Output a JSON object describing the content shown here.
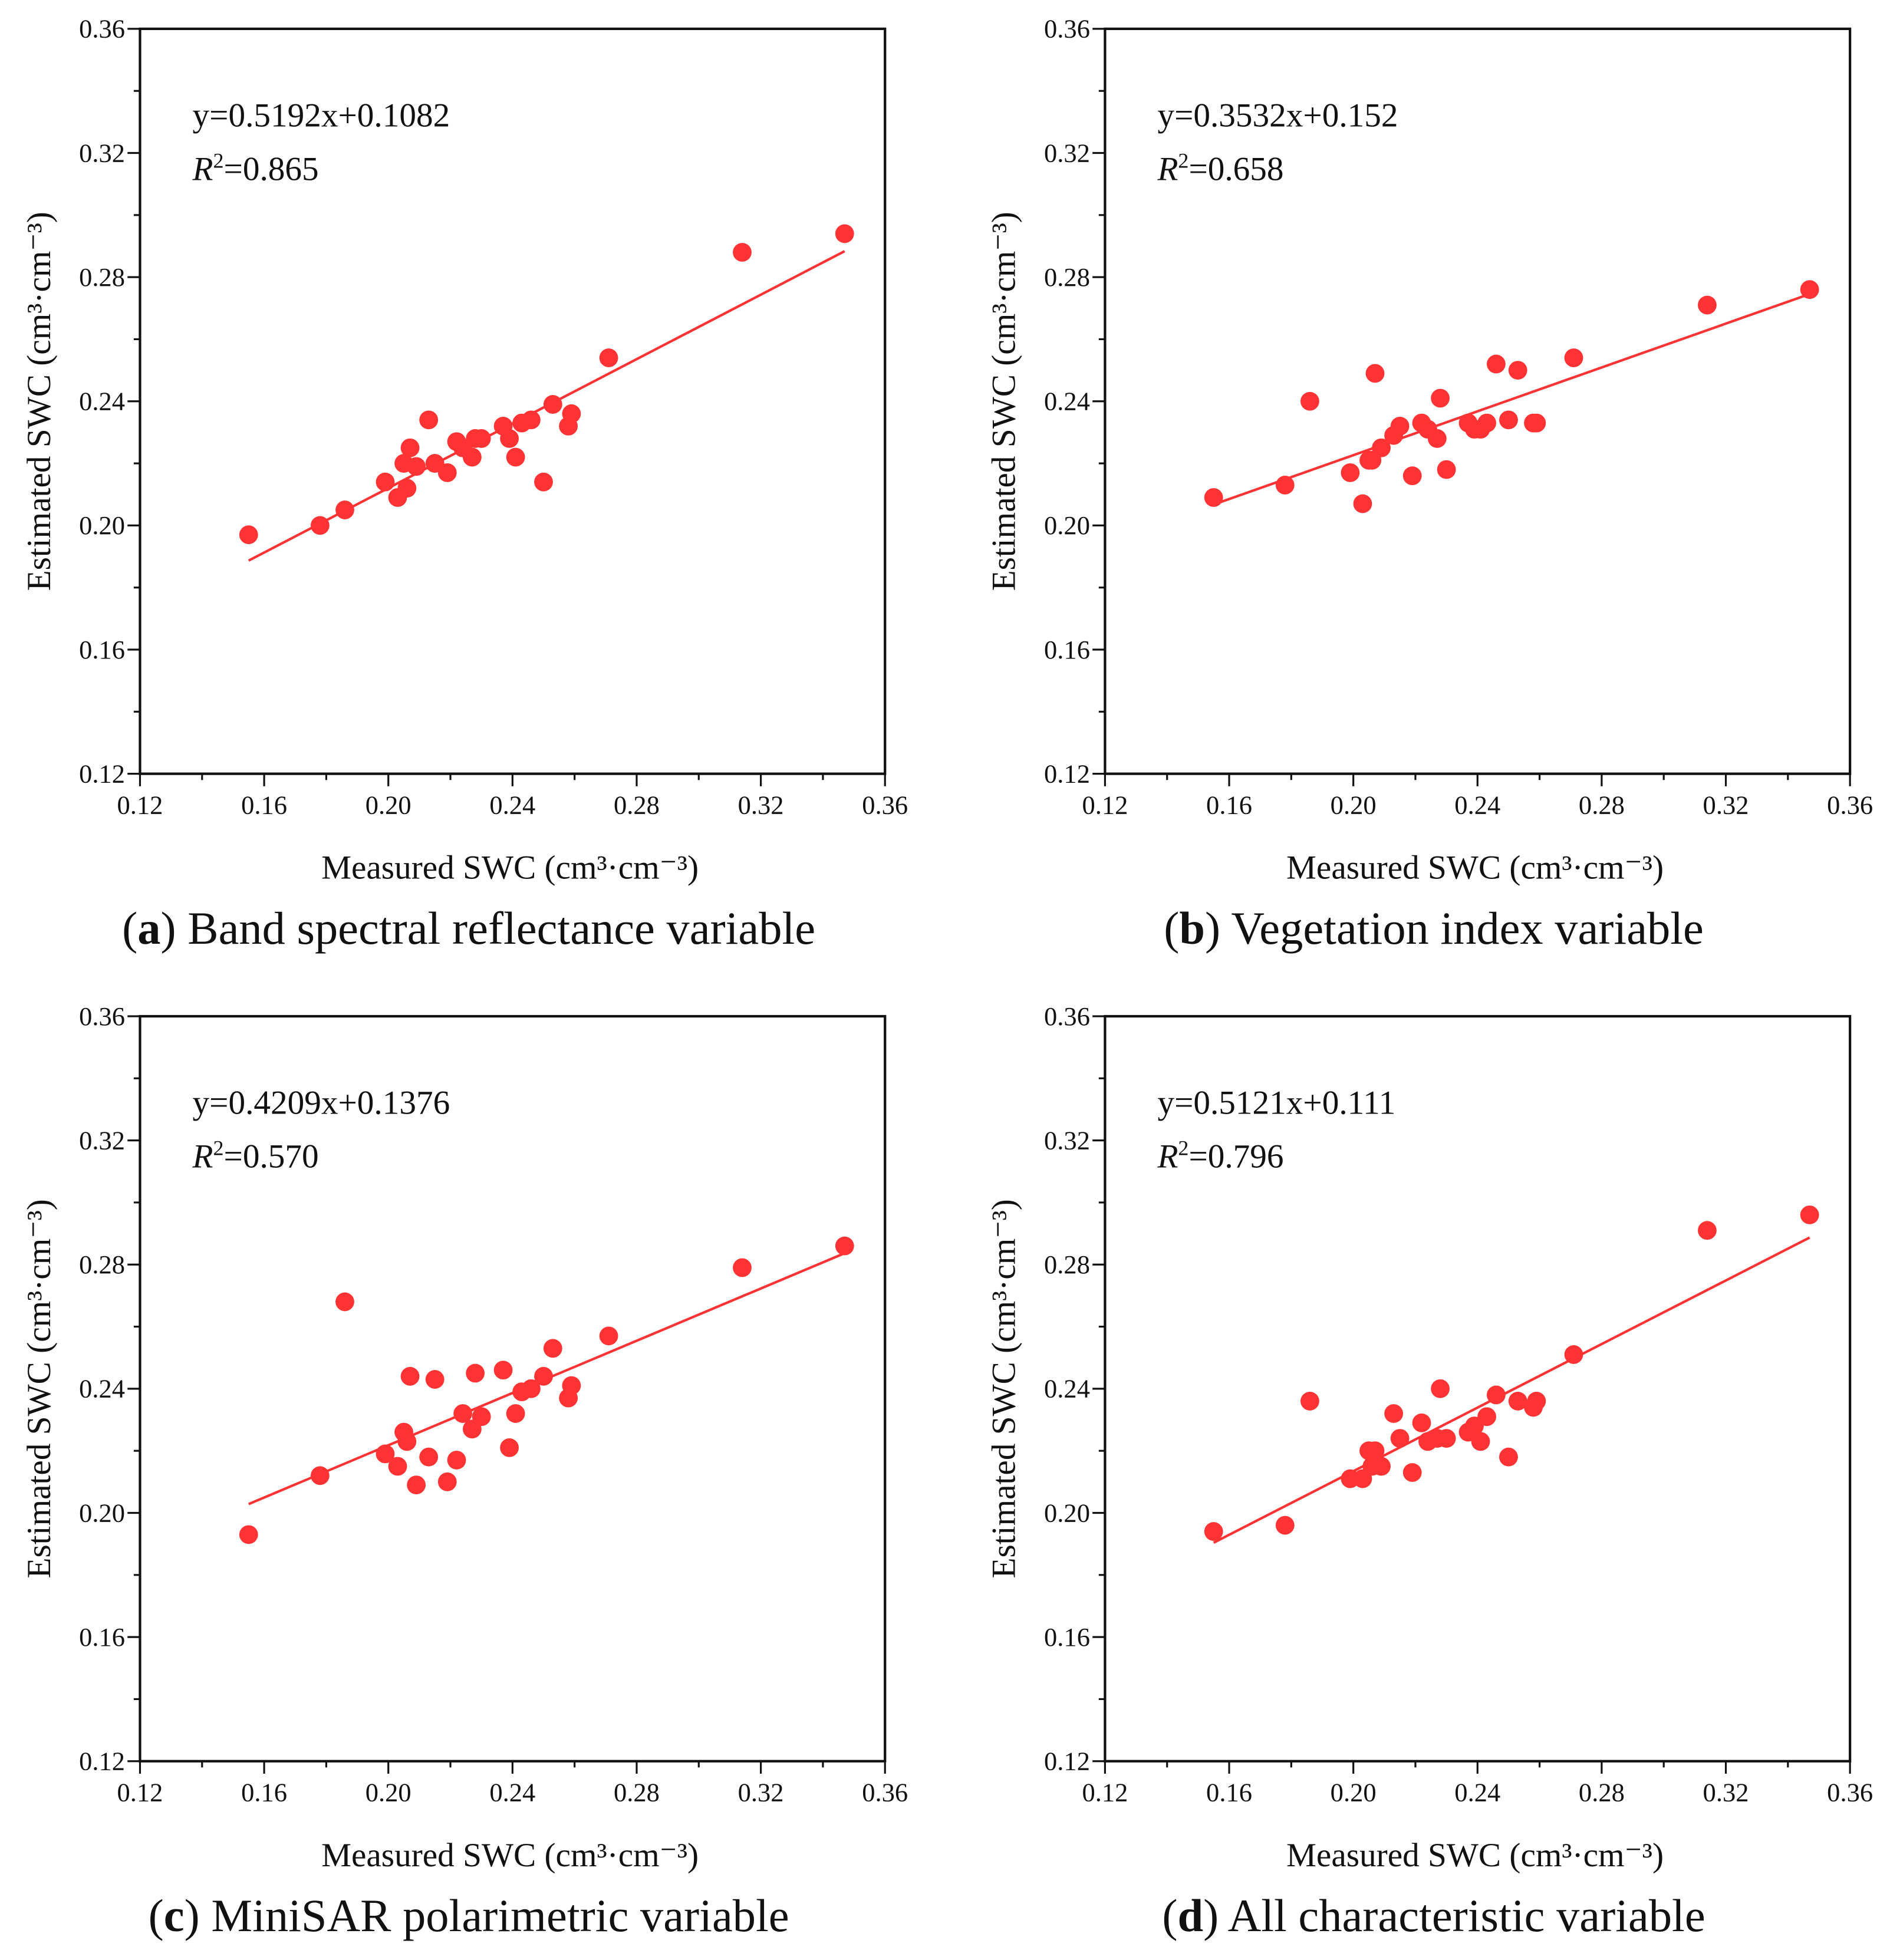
{
  "chart_data": [
    {
      "type": "scatter",
      "panel_letter": "a",
      "caption": " Band spectral reflectance variable",
      "equation": "y=0.5192x+0.1082",
      "r2_label": "R",
      "r2_value": "=0.865",
      "fit": {
        "slope": 0.5192,
        "intercept": 0.1082
      },
      "xlabel": "Measured SWC (cm³·cm⁻³)",
      "ylabel": "Estimated SWC (cm³·cm⁻³)",
      "xlim": [
        0.12,
        0.36
      ],
      "ylim": [
        0.12,
        0.36
      ],
      "ticks": [
        "0.12",
        "0.16",
        "0.20",
        "0.24",
        "0.28",
        "0.32",
        "0.36"
      ],
      "x": [
        0.155,
        0.178,
        0.186,
        0.199,
        0.203,
        0.205,
        0.206,
        0.207,
        0.209,
        0.213,
        0.215,
        0.219,
        0.222,
        0.224,
        0.227,
        0.228,
        0.23,
        0.237,
        0.239,
        0.241,
        0.243,
        0.246,
        0.25,
        0.253,
        0.258,
        0.259,
        0.271,
        0.314,
        0.347
      ],
      "y": [
        0.197,
        0.2,
        0.205,
        0.214,
        0.209,
        0.22,
        0.212,
        0.225,
        0.219,
        0.234,
        0.22,
        0.217,
        0.227,
        0.225,
        0.222,
        0.228,
        0.228,
        0.232,
        0.228,
        0.222,
        0.233,
        0.234,
        0.214,
        0.239,
        0.232,
        0.236,
        0.254,
        0.288,
        0.294
      ]
    },
    {
      "type": "scatter",
      "panel_letter": "b",
      "caption": " Vegetation index variable",
      "equation": "y=0.3532x+0.152",
      "r2_label": "R",
      "r2_value": "=0.658",
      "fit": {
        "slope": 0.3532,
        "intercept": 0.152
      },
      "xlabel": "Measured SWC (cm³·cm⁻³)",
      "ylabel": "Estimated SWC (cm³·cm⁻³)",
      "xlim": [
        0.12,
        0.36
      ],
      "ylim": [
        0.12,
        0.36
      ],
      "ticks": [
        "0.12",
        "0.16",
        "0.20",
        "0.24",
        "0.28",
        "0.32",
        "0.36"
      ],
      "x": [
        0.155,
        0.178,
        0.186,
        0.199,
        0.203,
        0.205,
        0.206,
        0.207,
        0.209,
        0.213,
        0.215,
        0.219,
        0.222,
        0.224,
        0.227,
        0.228,
        0.23,
        0.237,
        0.239,
        0.241,
        0.243,
        0.246,
        0.25,
        0.253,
        0.258,
        0.259,
        0.271,
        0.314,
        0.347
      ],
      "y": [
        0.209,
        0.213,
        0.24,
        0.217,
        0.207,
        0.221,
        0.221,
        0.249,
        0.225,
        0.229,
        0.232,
        0.216,
        0.233,
        0.231,
        0.228,
        0.241,
        0.218,
        0.233,
        0.231,
        0.231,
        0.233,
        0.252,
        0.234,
        0.25,
        0.233,
        0.233,
        0.254,
        0.271,
        0.276
      ]
    },
    {
      "type": "scatter",
      "panel_letter": "c",
      "caption": " MiniSAR polarimetric variable",
      "equation": "y=0.4209x+0.1376",
      "r2_label": "R",
      "r2_value": "=0.570",
      "fit": {
        "slope": 0.4209,
        "intercept": 0.1376
      },
      "xlabel": "Measured SWC (cm³·cm⁻³)",
      "ylabel": "Estimated SWC (cm³·cm⁻³)",
      "xlim": [
        0.12,
        0.36
      ],
      "ylim": [
        0.12,
        0.36
      ],
      "ticks": [
        "0.12",
        "0.16",
        "0.20",
        "0.24",
        "0.28",
        "0.32",
        "0.36"
      ],
      "x": [
        0.155,
        0.178,
        0.186,
        0.199,
        0.203,
        0.205,
        0.206,
        0.207,
        0.209,
        0.213,
        0.215,
        0.219,
        0.222,
        0.224,
        0.227,
        0.228,
        0.23,
        0.237,
        0.239,
        0.241,
        0.243,
        0.246,
        0.25,
        0.253,
        0.258,
        0.259,
        0.271,
        0.314,
        0.347
      ],
      "y": [
        0.193,
        0.212,
        0.268,
        0.219,
        0.215,
        0.226,
        0.223,
        0.244,
        0.209,
        0.218,
        0.243,
        0.21,
        0.217,
        0.232,
        0.227,
        0.245,
        0.231,
        0.246,
        0.221,
        0.232,
        0.239,
        0.24,
        0.244,
        0.253,
        0.237,
        0.241,
        0.257,
        0.279,
        0.286
      ]
    },
    {
      "type": "scatter",
      "panel_letter": "d",
      "caption": " All characteristic variable",
      "equation": "y=0.5121x+0.111",
      "r2_label": "R",
      "r2_value": "=0.796",
      "fit": {
        "slope": 0.5121,
        "intercept": 0.111
      },
      "xlabel": "Measured SWC (cm³·cm⁻³)",
      "ylabel": "Estimated SWC (cm³·cm⁻³)",
      "xlim": [
        0.12,
        0.36
      ],
      "ylim": [
        0.12,
        0.36
      ],
      "ticks": [
        "0.12",
        "0.16",
        "0.20",
        "0.24",
        "0.28",
        "0.32",
        "0.36"
      ],
      "x": [
        0.155,
        0.178,
        0.186,
        0.199,
        0.203,
        0.205,
        0.206,
        0.207,
        0.209,
        0.213,
        0.215,
        0.219,
        0.222,
        0.224,
        0.227,
        0.228,
        0.23,
        0.237,
        0.239,
        0.241,
        0.243,
        0.246,
        0.25,
        0.253,
        0.258,
        0.259,
        0.271,
        0.314,
        0.347
      ],
      "y": [
        0.194,
        0.196,
        0.236,
        0.211,
        0.211,
        0.22,
        0.215,
        0.22,
        0.215,
        0.232,
        0.224,
        0.213,
        0.229,
        0.223,
        0.224,
        0.24,
        0.224,
        0.226,
        0.228,
        0.223,
        0.231,
        0.238,
        0.218,
        0.236,
        0.234,
        0.236,
        0.251,
        0.291,
        0.296
      ]
    }
  ],
  "colors": {
    "points": "#ff3333",
    "fit_line": "#ff3333",
    "axes": "#111111"
  }
}
